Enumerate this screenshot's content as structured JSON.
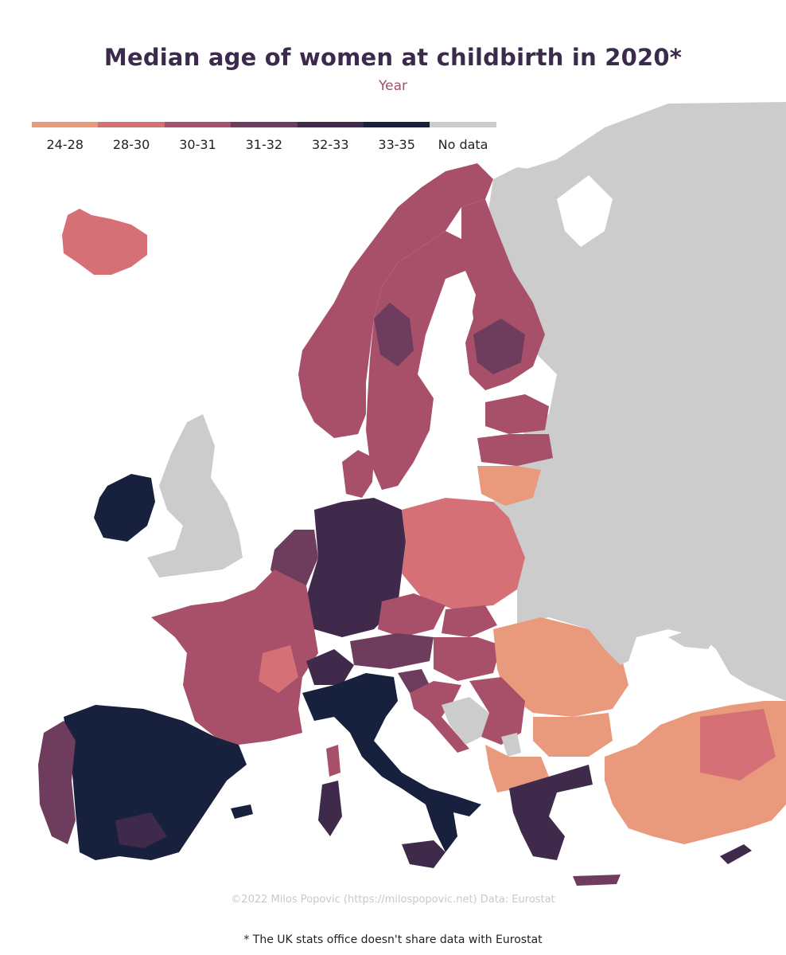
{
  "title": "Median age of women at childbirth in 2020*",
  "subtitle": "Year",
  "legend": {
    "items": [
      {
        "label": "24-28",
        "color": "#ea9a7c"
      },
      {
        "label": "28-30",
        "color": "#d57176"
      },
      {
        "label": "30-31",
        "color": "#a85069"
      },
      {
        "label": "31-32",
        "color": "#6e3c5c"
      },
      {
        "label": "32-33",
        "color": "#3f2a4c"
      },
      {
        "label": "33-35",
        "color": "#17203c"
      },
      {
        "label": "No data",
        "color": "#cccccc"
      }
    ]
  },
  "credit": "©2022 Milos Popovic (https://milospopovic.net) Data: Eurostat",
  "footnote": "* The UK stats office doesn't share data with Eurostat"
}
